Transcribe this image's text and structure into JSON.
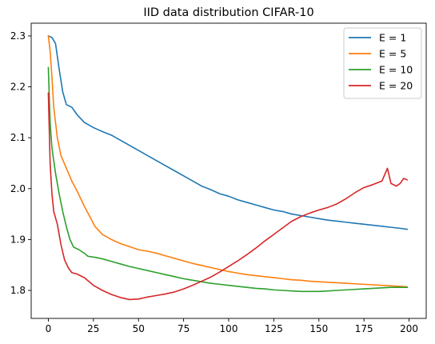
{
  "chart_data": {
    "type": "line",
    "title": "IID data distribution CIFAR-10",
    "xlabel": "",
    "ylabel": "",
    "xlim": [
      -9.5,
      209.5
    ],
    "ylim": [
      1.745,
      2.325
    ],
    "xticks": [
      0,
      25,
      50,
      75,
      100,
      125,
      150,
      175,
      200
    ],
    "yticks": [
      1.8,
      1.9,
      2.0,
      2.1,
      2.2,
      2.3
    ],
    "ytick_labels": [
      "1.8",
      "1.9",
      "2.0",
      "2.1",
      "2.2",
      "2.3"
    ],
    "grid": false,
    "legend_position": "top-right",
    "series": [
      {
        "name": "E = 1",
        "color": "#1f77b4",
        "points": [
          [
            0,
            2.3
          ],
          [
            2,
            2.297
          ],
          [
            4,
            2.285
          ],
          [
            6,
            2.235
          ],
          [
            8,
            2.19
          ],
          [
            10,
            2.165
          ],
          [
            13,
            2.16
          ],
          [
            16,
            2.145
          ],
          [
            20,
            2.13
          ],
          [
            25,
            2.12
          ],
          [
            30,
            2.112
          ],
          [
            35,
            2.105
          ],
          [
            40,
            2.095
          ],
          [
            45,
            2.085
          ],
          [
            50,
            2.075
          ],
          [
            55,
            2.065
          ],
          [
            60,
            2.055
          ],
          [
            65,
            2.045
          ],
          [
            70,
            2.035
          ],
          [
            75,
            2.025
          ],
          [
            80,
            2.015
          ],
          [
            85,
            2.005
          ],
          [
            90,
            1.998
          ],
          [
            95,
            1.99
          ],
          [
            100,
            1.985
          ],
          [
            105,
            1.978
          ],
          [
            110,
            1.973
          ],
          [
            115,
            1.968
          ],
          [
            120,
            1.963
          ],
          [
            125,
            1.958
          ],
          [
            130,
            1.955
          ],
          [
            135,
            1.95
          ],
          [
            140,
            1.947
          ],
          [
            145,
            1.944
          ],
          [
            150,
            1.941
          ],
          [
            155,
            1.938
          ],
          [
            160,
            1.936
          ],
          [
            165,
            1.934
          ],
          [
            170,
            1.932
          ],
          [
            175,
            1.93
          ],
          [
            180,
            1.928
          ],
          [
            185,
            1.926
          ],
          [
            190,
            1.924
          ],
          [
            195,
            1.922
          ],
          [
            199,
            1.92
          ]
        ]
      },
      {
        "name": "E = 5",
        "color": "#ff7f0e",
        "points": [
          [
            0,
            2.3
          ],
          [
            1,
            2.27
          ],
          [
            2,
            2.22
          ],
          [
            3,
            2.16
          ],
          [
            5,
            2.1
          ],
          [
            7,
            2.065
          ],
          [
            10,
            2.04
          ],
          [
            13,
            2.015
          ],
          [
            16,
            1.995
          ],
          [
            20,
            1.965
          ],
          [
            23,
            1.945
          ],
          [
            26,
            1.925
          ],
          [
            30,
            1.91
          ],
          [
            35,
            1.9
          ],
          [
            40,
            1.892
          ],
          [
            45,
            1.886
          ],
          [
            50,
            1.88
          ],
          [
            55,
            1.877
          ],
          [
            60,
            1.873
          ],
          [
            65,
            1.868
          ],
          [
            70,
            1.863
          ],
          [
            75,
            1.858
          ],
          [
            80,
            1.853
          ],
          [
            85,
            1.849
          ],
          [
            90,
            1.845
          ],
          [
            95,
            1.841
          ],
          [
            100,
            1.837
          ],
          [
            105,
            1.834
          ],
          [
            110,
            1.831
          ],
          [
            115,
            1.829
          ],
          [
            120,
            1.827
          ],
          [
            125,
            1.825
          ],
          [
            130,
            1.823
          ],
          [
            135,
            1.821
          ],
          [
            140,
            1.82
          ],
          [
            145,
            1.818
          ],
          [
            150,
            1.817
          ],
          [
            155,
            1.816
          ],
          [
            160,
            1.815
          ],
          [
            165,
            1.814
          ],
          [
            170,
            1.813
          ],
          [
            175,
            1.812
          ],
          [
            180,
            1.811
          ],
          [
            185,
            1.81
          ],
          [
            190,
            1.809
          ],
          [
            195,
            1.808
          ],
          [
            199,
            1.807
          ]
        ]
      },
      {
        "name": "E = 10",
        "color": "#2ca02c",
        "points": [
          [
            0,
            2.238
          ],
          [
            1,
            2.13
          ],
          [
            2,
            2.08
          ],
          [
            4,
            2.03
          ],
          [
            6,
            1.99
          ],
          [
            8,
            1.955
          ],
          [
            10,
            1.925
          ],
          [
            12,
            1.9
          ],
          [
            14,
            1.885
          ],
          [
            17,
            1.88
          ],
          [
            20,
            1.873
          ],
          [
            22,
            1.867
          ],
          [
            26,
            1.865
          ],
          [
            30,
            1.862
          ],
          [
            35,
            1.857
          ],
          [
            40,
            1.852
          ],
          [
            45,
            1.847
          ],
          [
            50,
            1.843
          ],
          [
            55,
            1.839
          ],
          [
            60,
            1.835
          ],
          [
            65,
            1.831
          ],
          [
            70,
            1.827
          ],
          [
            75,
            1.823
          ],
          [
            80,
            1.82
          ],
          [
            85,
            1.817
          ],
          [
            90,
            1.814
          ],
          [
            95,
            1.812
          ],
          [
            100,
            1.81
          ],
          [
            105,
            1.808
          ],
          [
            110,
            1.806
          ],
          [
            115,
            1.804
          ],
          [
            120,
            1.803
          ],
          [
            125,
            1.801
          ],
          [
            130,
            1.8
          ],
          [
            135,
            1.799
          ],
          [
            140,
            1.798
          ],
          [
            145,
            1.798
          ],
          [
            150,
            1.798
          ],
          [
            155,
            1.799
          ],
          [
            160,
            1.8
          ],
          [
            165,
            1.801
          ],
          [
            170,
            1.802
          ],
          [
            175,
            1.803
          ],
          [
            180,
            1.804
          ],
          [
            185,
            1.805
          ],
          [
            190,
            1.806
          ],
          [
            195,
            1.806
          ],
          [
            199,
            1.806
          ]
        ]
      },
      {
        "name": "E = 20",
        "color": "#d62728",
        "points": [
          [
            0,
            2.188
          ],
          [
            1,
            2.05
          ],
          [
            2,
            1.99
          ],
          [
            3,
            1.955
          ],
          [
            5,
            1.93
          ],
          [
            7,
            1.89
          ],
          [
            9,
            1.86
          ],
          [
            11,
            1.845
          ],
          [
            13,
            1.835
          ],
          [
            16,
            1.832
          ],
          [
            20,
            1.825
          ],
          [
            25,
            1.81
          ],
          [
            30,
            1.8
          ],
          [
            35,
            1.792
          ],
          [
            40,
            1.786
          ],
          [
            45,
            1.782
          ],
          [
            50,
            1.783
          ],
          [
            55,
            1.787
          ],
          [
            60,
            1.79
          ],
          [
            65,
            1.793
          ],
          [
            70,
            1.797
          ],
          [
            75,
            1.803
          ],
          [
            80,
            1.81
          ],
          [
            85,
            1.818
          ],
          [
            90,
            1.826
          ],
          [
            95,
            1.836
          ],
          [
            100,
            1.847
          ],
          [
            105,
            1.858
          ],
          [
            110,
            1.87
          ],
          [
            115,
            1.883
          ],
          [
            120,
            1.897
          ],
          [
            125,
            1.91
          ],
          [
            130,
            1.923
          ],
          [
            135,
            1.936
          ],
          [
            140,
            1.945
          ],
          [
            145,
            1.952
          ],
          [
            150,
            1.958
          ],
          [
            155,
            1.963
          ],
          [
            160,
            1.97
          ],
          [
            165,
            1.98
          ],
          [
            170,
            1.992
          ],
          [
            175,
            2.002
          ],
          [
            180,
            2.008
          ],
          [
            185,
            2.015
          ],
          [
            188,
            2.04
          ],
          [
            190,
            2.01
          ],
          [
            193,
            2.005
          ],
          [
            195,
            2.01
          ],
          [
            197,
            2.02
          ],
          [
            199,
            2.017
          ]
        ]
      }
    ]
  }
}
